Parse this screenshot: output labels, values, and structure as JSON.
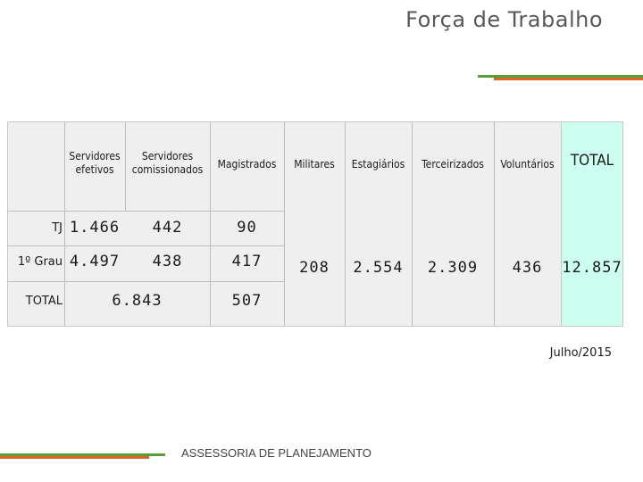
{
  "title": "Força de Trabalho",
  "headers": {
    "servidores_efetivos": "Servidores efetivos",
    "servidores_comissionados": "Servidores comissionados",
    "magistrados": "Magistrados",
    "militares": "Militares",
    "estagiarios": "Estagiários",
    "terceirizados": "Terceirizados",
    "voluntarios": "Voluntários",
    "total": "TOTAL"
  },
  "rows": {
    "tj": {
      "label": "TJ",
      "efetivos": "1.466",
      "comissionados": "442",
      "magistrados": "90"
    },
    "grau1": {
      "label": "1º Grau",
      "efetivos": "4.497",
      "comissionados": "438",
      "magistrados": "417"
    },
    "total": {
      "label": "TOTAL",
      "servidores": "6.843",
      "magistrados": "507"
    }
  },
  "merged": {
    "militares": "208",
    "estagiarios": "2.554",
    "terceirizados": "2.309",
    "voluntarios": "436",
    "total": "12.857"
  },
  "footer": {
    "date": "Julho/2015",
    "org": "ASSESSORIA DE PLANEJAMENTO"
  },
  "colors": {
    "accent_green": "#5a9e3a",
    "accent_orange": "#d9652b",
    "total_column": "#ccfff0"
  }
}
